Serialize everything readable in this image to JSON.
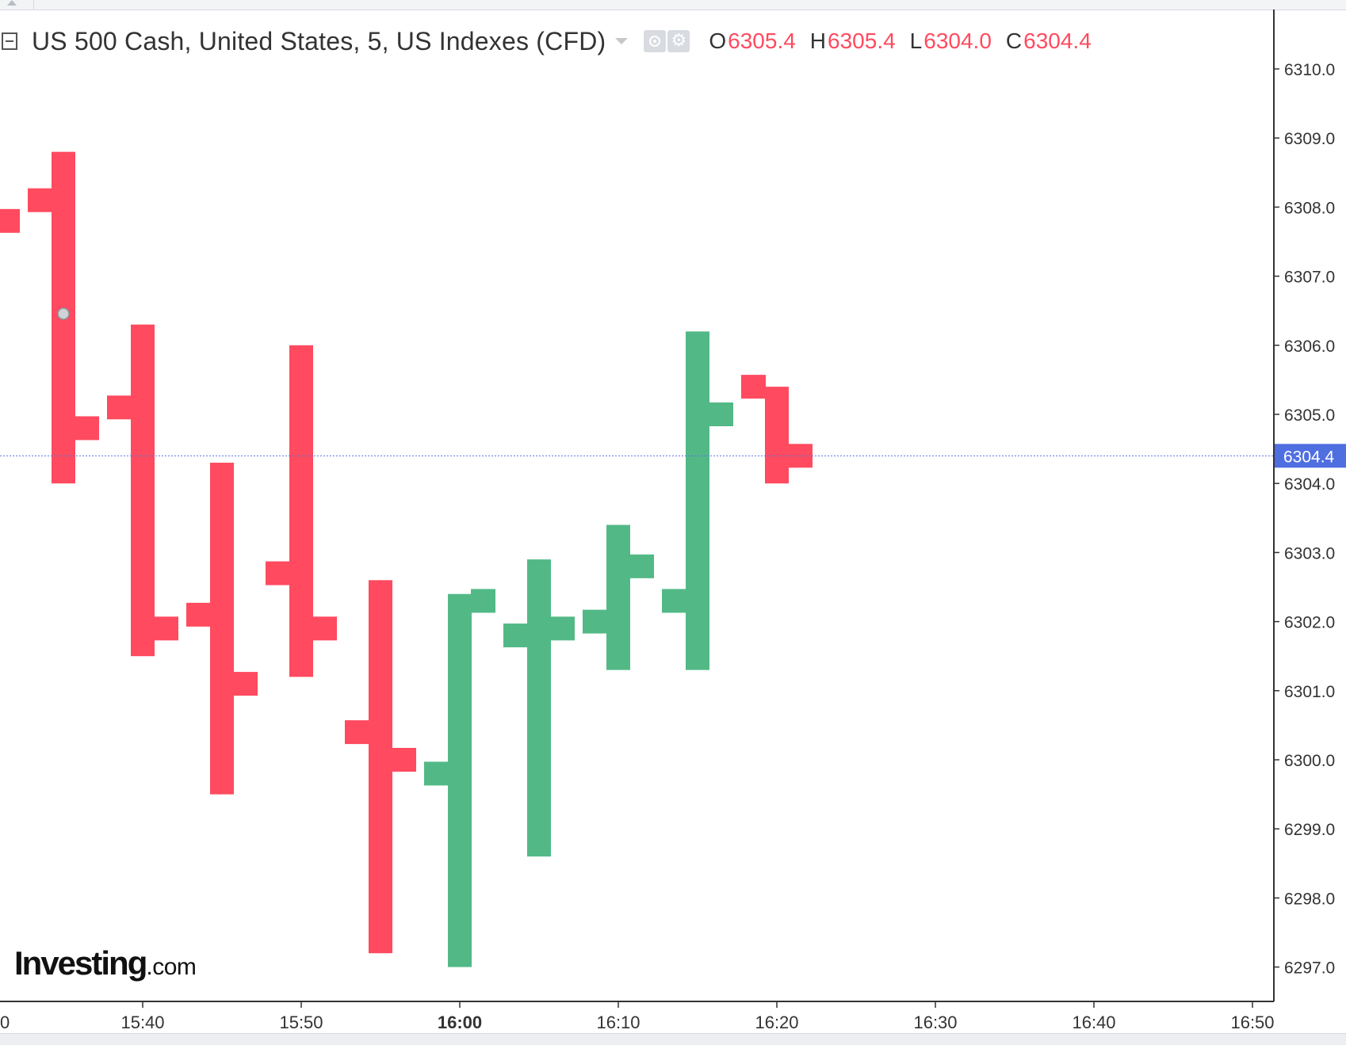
{
  "header": {
    "symbol_title": "US 500 Cash, United States, 5, US Indexes (CFD)",
    "ohlc": {
      "open_label": "O",
      "open_value": "6305.4",
      "high_label": "H",
      "high_value": "6305.4",
      "low_label": "L",
      "low_value": "6304.0",
      "close_label": "C",
      "close_value": "6304.4"
    }
  },
  "logo": {
    "main": "Investing",
    "suffix": ".com"
  },
  "icons": {
    "collapse": "collapse-icon",
    "dropdown": "chevron-down-icon",
    "visibility": "eye-icon",
    "settings": "gear-icon"
  },
  "chart_data": {
    "type": "ohlc",
    "title": "US 500 Cash, United States, 5, US Indexes (CFD)",
    "xlabel": "",
    "ylabel": "",
    "x_ticks": [
      "0",
      "15:40",
      "15:50",
      "16:00",
      "16:10",
      "16:20",
      "16:30",
      "16:40",
      "16:50"
    ],
    "x_tick_bold": "16:00",
    "y_ticks": [
      "6297.0",
      "6298.0",
      "6299.0",
      "6300.0",
      "6301.0",
      "6302.0",
      "6303.0",
      "6304.0",
      "6305.0",
      "6306.0",
      "6307.0",
      "6308.0",
      "6309.0",
      "6310.0"
    ],
    "ylim": [
      6296.4,
      6310.6
    ],
    "last_price": "6304.4",
    "last_price_value": 6304.4,
    "colors": {
      "up": "#52b986",
      "down": "#ff4a5f",
      "price_line": "#5d74dd",
      "price_label_bg": "#4f6ee0"
    },
    "grid": false,
    "bars": [
      {
        "time": "15:30",
        "open": 6308.0,
        "high": 6308.0,
        "low": 6307.8,
        "close": 6307.8,
        "direction": "down"
      },
      {
        "time": "15:35",
        "open": 6308.1,
        "high": 6308.8,
        "low": 6304.0,
        "close": 6304.8,
        "direction": "down"
      },
      {
        "time": "15:40",
        "open": 6305.1,
        "high": 6306.3,
        "low": 6301.5,
        "close": 6301.9,
        "direction": "down"
      },
      {
        "time": "15:45",
        "open": 6302.1,
        "high": 6304.3,
        "low": 6299.5,
        "close": 6301.1,
        "direction": "down"
      },
      {
        "time": "15:50",
        "open": 6302.7,
        "high": 6306.0,
        "low": 6301.2,
        "close": 6301.9,
        "direction": "down"
      },
      {
        "time": "15:55",
        "open": 6300.4,
        "high": 6302.6,
        "low": 6297.2,
        "close": 6300.0,
        "direction": "down"
      },
      {
        "time": "16:00",
        "open": 6299.8,
        "high": 6302.4,
        "low": 6297.0,
        "close": 6302.3,
        "direction": "up"
      },
      {
        "time": "16:05",
        "open": 6301.8,
        "high": 6302.9,
        "low": 6298.6,
        "close": 6301.9,
        "direction": "up"
      },
      {
        "time": "16:10",
        "open": 6302.0,
        "high": 6303.4,
        "low": 6301.3,
        "close": 6302.8,
        "direction": "up"
      },
      {
        "time": "16:15",
        "open": 6302.3,
        "high": 6306.2,
        "low": 6301.3,
        "close": 6305.0,
        "direction": "up"
      },
      {
        "time": "16:20",
        "open": 6305.4,
        "high": 6305.4,
        "low": 6304.0,
        "close": 6304.4,
        "direction": "down"
      }
    ]
  }
}
